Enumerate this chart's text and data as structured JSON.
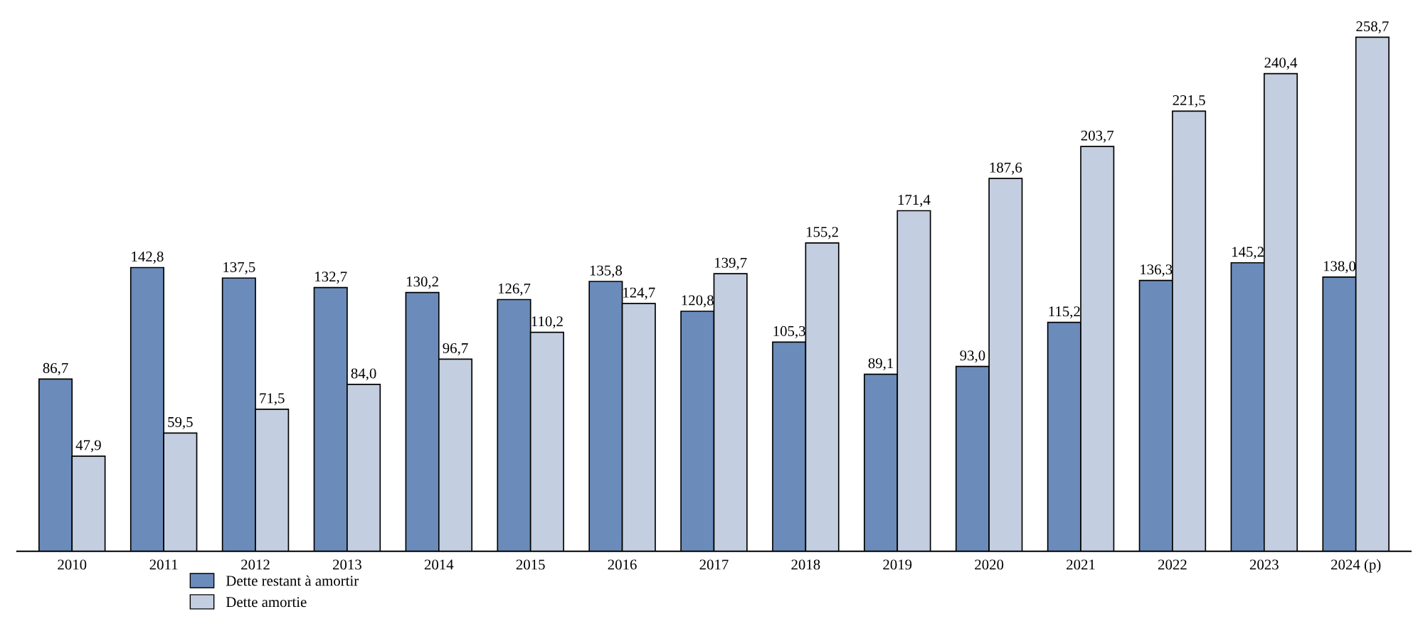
{
  "chart_data": {
    "type": "bar",
    "categories": [
      "2010",
      "2011",
      "2012",
      "2013",
      "2014",
      "2015",
      "2016",
      "2017",
      "2018",
      "2019",
      "2020",
      "2021",
      "2022",
      "2023",
      "2024 (p)"
    ],
    "series": [
      {
        "name": "Dette restant à amortir",
        "color": "#6b8cba",
        "values": [
          86.7,
          142.8,
          137.5,
          132.7,
          130.2,
          126.7,
          135.8,
          120.8,
          105.3,
          89.1,
          93.0,
          115.2,
          136.3,
          145.2,
          138.0
        ],
        "value_labels": [
          "86,7",
          "142,8",
          "137,5",
          "132,7",
          "130,2",
          "126,7",
          "135,8",
          "120,8",
          "105,3",
          "89,1",
          "93,0",
          "115,2",
          "136,3",
          "145,2",
          "138,0"
        ]
      },
      {
        "name": "Dette amortie",
        "color": "#c3cee0",
        "values": [
          47.9,
          59.5,
          71.5,
          84.0,
          96.7,
          110.2,
          124.7,
          139.7,
          155.2,
          171.4,
          187.6,
          203.7,
          221.5,
          240.4,
          258.7
        ],
        "value_labels": [
          "47,9",
          "59,5",
          "71,5",
          "84,0",
          "96,7",
          "110,2",
          "124,7",
          "139,7",
          "155,2",
          "171,4",
          "187,6",
          "203,7",
          "221,5",
          "240,4",
          "258,7"
        ]
      }
    ],
    "grid": false,
    "legend": "bottom left"
  }
}
